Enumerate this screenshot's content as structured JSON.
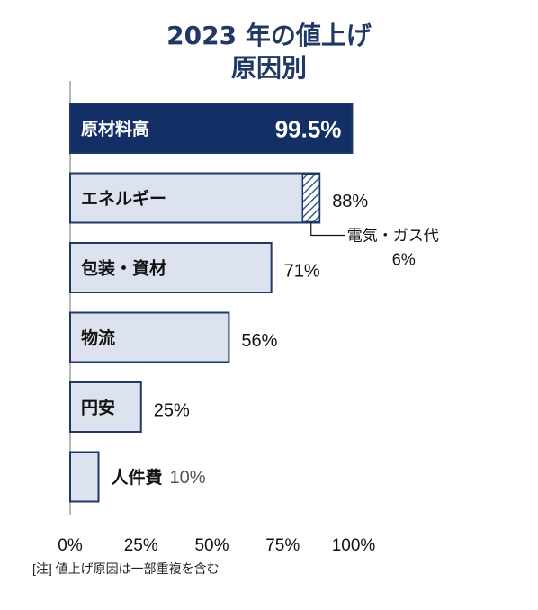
{
  "chart_data": {
    "type": "bar",
    "orientation": "horizontal",
    "title": "2023 年の値上げ",
    "subtitle": "原因別",
    "categories": [
      "原材料高",
      "エネルギー",
      "包装・資材",
      "物流",
      "円安",
      "人件費"
    ],
    "values": [
      99.5,
      88,
      71,
      56,
      25,
      10
    ],
    "value_labels": [
      "99.5%",
      "88%",
      "71%",
      "56%",
      "25%",
      "10%"
    ],
    "xlim": [
      0,
      100
    ],
    "xticks": [
      "0%",
      "25%",
      "50%",
      "75%",
      "100%"
    ],
    "grid": false,
    "highlight_index": 0,
    "sub_segment": {
      "category": "エネルギー",
      "label": "電気・ガス代",
      "value": 6,
      "value_label": "6%"
    },
    "colors": {
      "highlight_fill": "#132f66",
      "bar_fill": "#dce3ef",
      "bar_stroke": "#1f3864",
      "title": "#1f3864",
      "hatch": "#3a5a93",
      "muted_label": "#555555"
    }
  },
  "footnote": "[注] 値上げ原因は一部重複を含む"
}
